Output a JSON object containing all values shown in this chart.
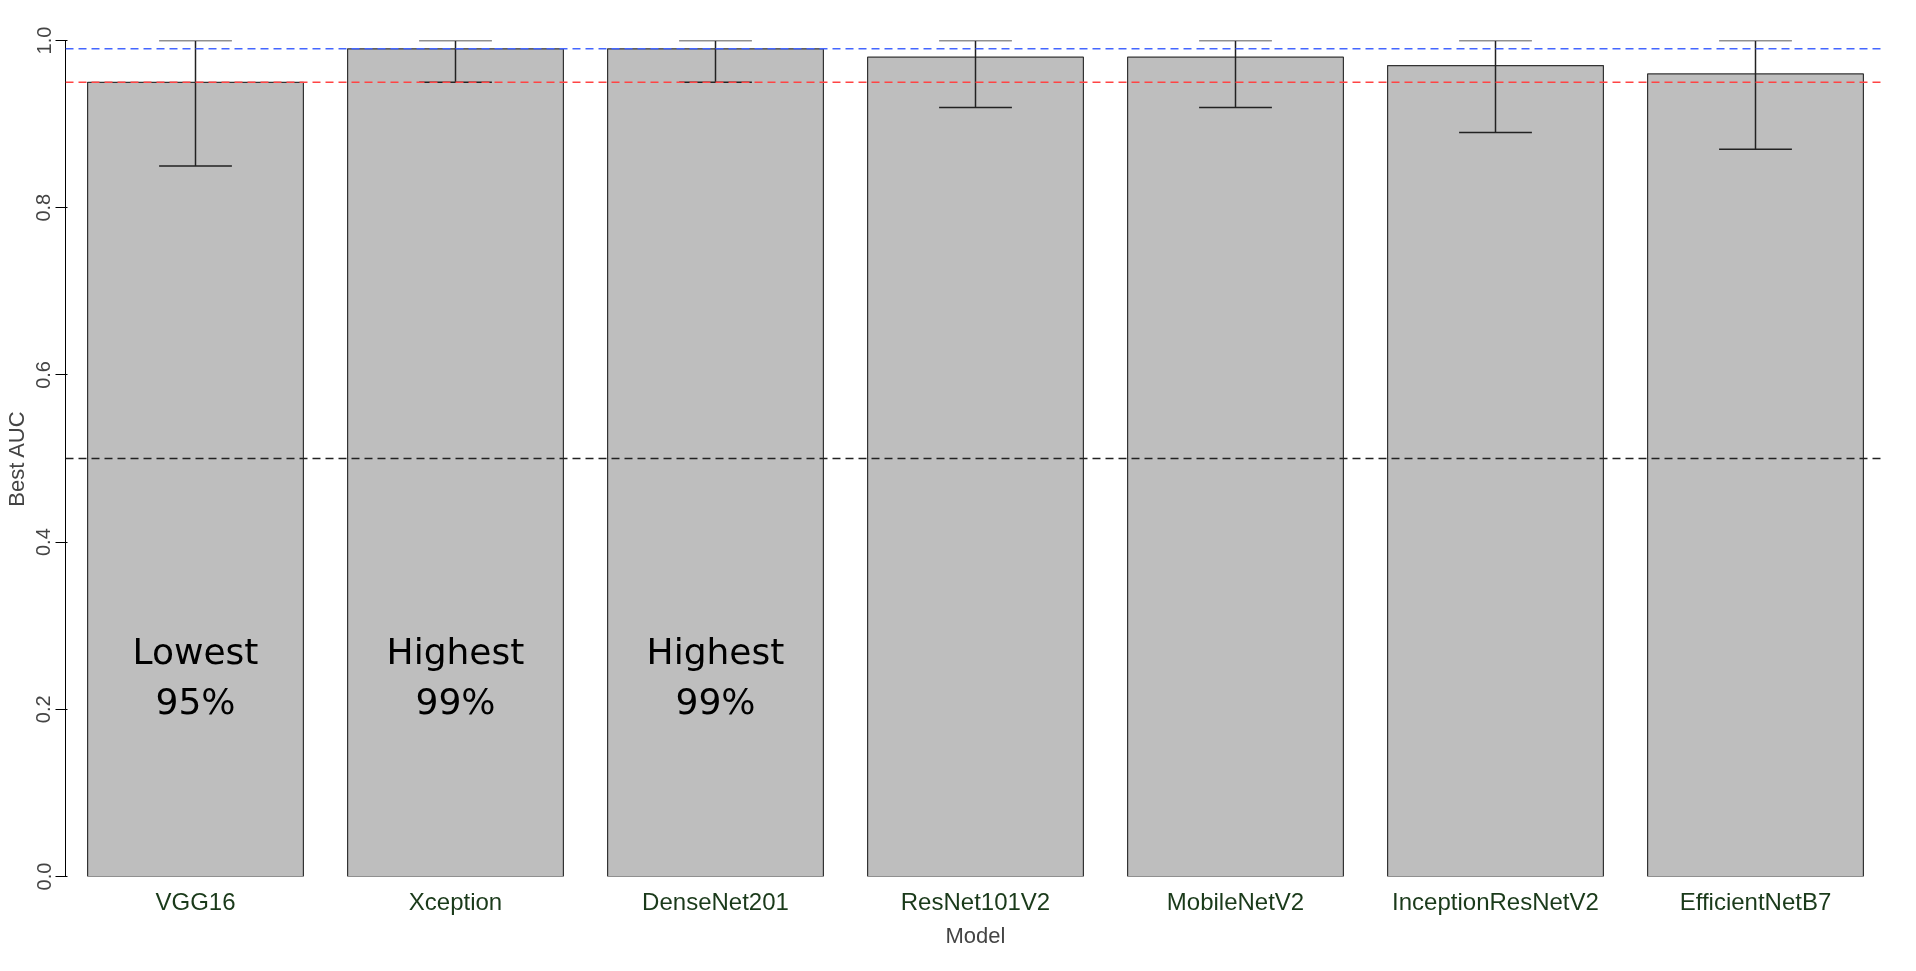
{
  "chart_data": {
    "type": "bar",
    "xlabel": "Model",
    "ylabel": "Best AUC",
    "categories": [
      "VGG16",
      "Xception",
      "DenseNet201",
      "ResNet101V2",
      "MobileNetV2",
      "InceptionResNetV2",
      "EfficientNetB7"
    ],
    "values": [
      0.95,
      0.99,
      0.99,
      0.98,
      0.98,
      0.97,
      0.96
    ],
    "color": "#bebebe",
    "errors": [
      [
        0.85,
        1.0
      ],
      [
        0.95,
        1.0
      ],
      [
        0.95,
        1.0
      ],
      [
        0.92,
        1.0
      ],
      [
        0.92,
        1.0
      ],
      [
        0.89,
        1.0
      ],
      [
        0.87,
        1.0
      ]
    ],
    "ylim": [
      0,
      1.0
    ],
    "yticks": [
      {
        "value": 0,
        "label": "0.0"
      },
      {
        "value": 0.2,
        "label": "0.2"
      },
      {
        "value": 0.4,
        "label": "0.4"
      },
      {
        "value": 0.6,
        "label": "0.6"
      },
      {
        "value": 0.8,
        "label": "0.8"
      },
      {
        "value": 1.0,
        "label": "1.0"
      }
    ],
    "ref_lines": [
      {
        "axis": "y",
        "value": 0.99,
        "color": "#4466ff",
        "line_style": "dashed"
      },
      {
        "axis": "y",
        "value": 0.95,
        "color": "#ff4444",
        "line_style": "dashed"
      },
      {
        "axis": "y",
        "value": 0.5,
        "color": "#222222",
        "line_style": "dashed"
      }
    ],
    "annotations": [
      "Lowest\n95%",
      "Highest\n99%",
      "Highest\n99%"
    ],
    "grid": false
  }
}
